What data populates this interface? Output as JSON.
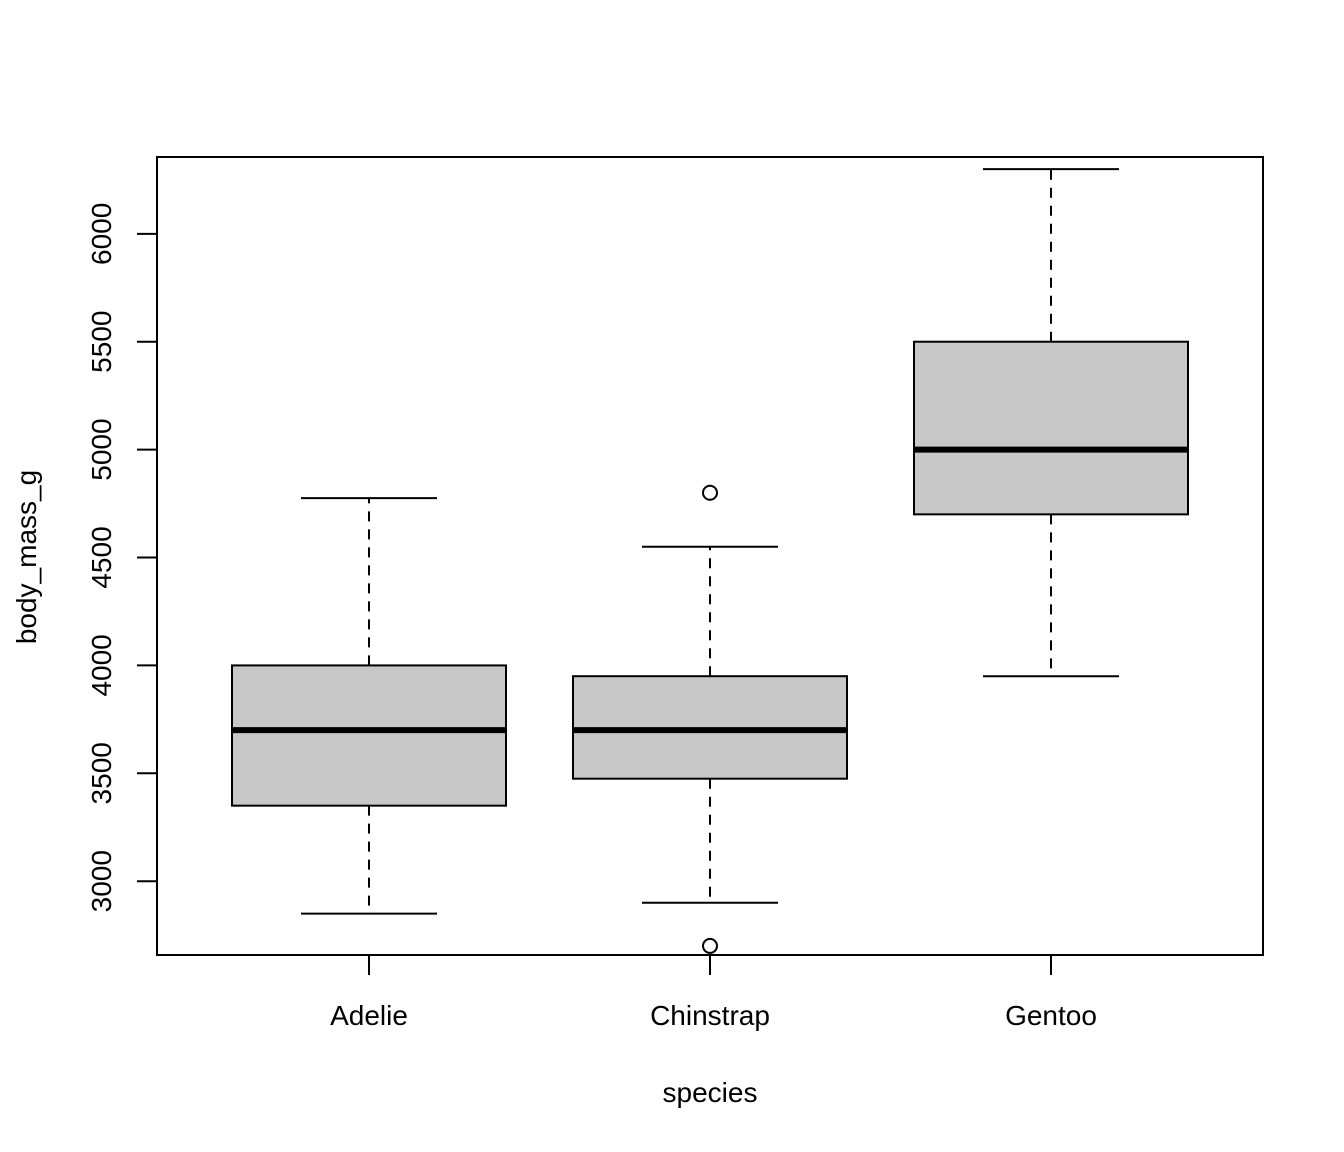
{
  "chart_data": {
    "type": "boxplot",
    "xlabel": "species",
    "ylabel": "body_mass_g",
    "categories": [
      "Adelie",
      "Chinstrap",
      "Gentoo"
    ],
    "yticks": [
      3000,
      3500,
      4000,
      4500,
      5000,
      5500,
      6000
    ],
    "ylim": [
      2700,
      6300
    ],
    "grid": false,
    "colors": {
      "box_fill": "#c8c8c8",
      "stroke": "#000000"
    },
    "boxes": [
      {
        "name": "Adelie",
        "whisker_low": 2850,
        "q1": 3350,
        "median": 3700,
        "q3": 4000,
        "whisker_high": 4775,
        "outliers": []
      },
      {
        "name": "Chinstrap",
        "whisker_low": 2900,
        "q1": 3475,
        "median": 3700,
        "q3": 3950,
        "whisker_high": 4550,
        "outliers": [
          2700,
          4800
        ]
      },
      {
        "name": "Gentoo",
        "whisker_low": 3950,
        "q1": 4700,
        "median": 5000,
        "q3": 5500,
        "whisker_high": 6300,
        "outliers": []
      }
    ]
  }
}
